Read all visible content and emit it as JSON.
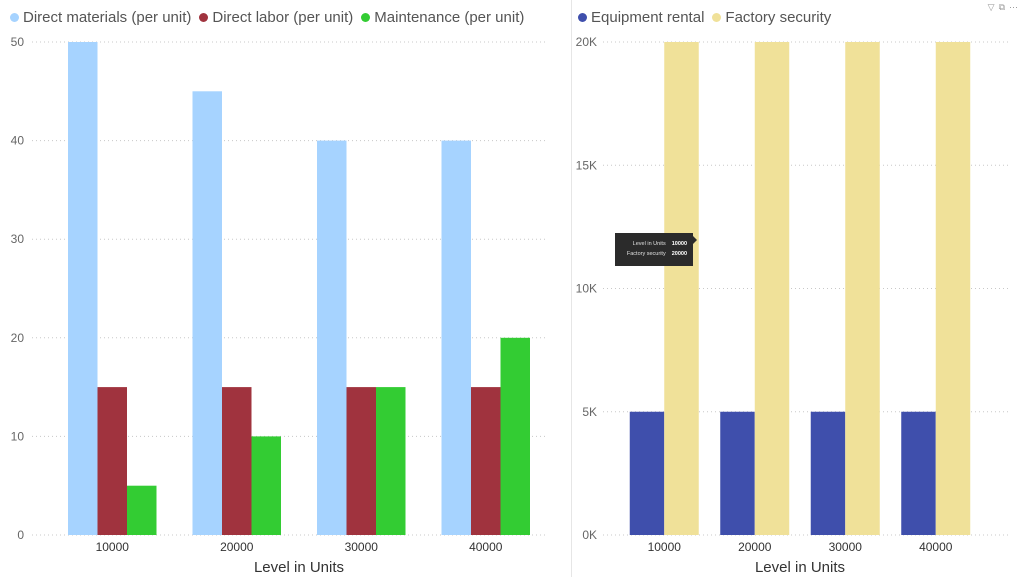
{
  "chart_data": [
    {
      "type": "bar",
      "title": "",
      "xlabel": "Level in Units",
      "ylabel": "",
      "categories": [
        "10000",
        "20000",
        "30000",
        "40000"
      ],
      "ylim": [
        0,
        50
      ],
      "yticks": [
        "0",
        "10",
        "20",
        "30",
        "40",
        "50"
      ],
      "ytick_values": [
        0,
        10,
        20,
        30,
        40,
        50
      ],
      "legend_position": "top-left",
      "grid": true,
      "series": [
        {
          "name": "Direct materials (per unit)",
          "color": "#a6d3ff",
          "values": [
            50,
            45,
            40,
            40
          ]
        },
        {
          "name": "Direct labor (per unit)",
          "color": "#a0333e",
          "values": [
            15,
            15,
            15,
            15
          ]
        },
        {
          "name": "Maintenance (per unit)",
          "color": "#33cc33",
          "values": [
            5,
            10,
            15,
            20
          ]
        }
      ]
    },
    {
      "type": "bar",
      "title": "",
      "xlabel": "Level in Units",
      "ylabel": "",
      "categories": [
        "10000",
        "20000",
        "30000",
        "40000"
      ],
      "ylim": [
        0,
        20000
      ],
      "yticks": [
        "0K",
        "5K",
        "10K",
        "15K",
        "20K"
      ],
      "ytick_values": [
        0,
        5000,
        10000,
        15000,
        20000
      ],
      "legend_position": "top-left",
      "grid": true,
      "series": [
        {
          "name": "Equipment rental",
          "color": "#3f4fac",
          "values": [
            5000,
            5000,
            5000,
            5000
          ]
        },
        {
          "name": "Factory security",
          "color": "#f0e199",
          "values": [
            20000,
            20000,
            20000,
            20000
          ]
        }
      ],
      "tooltip": {
        "rows": [
          {
            "label": "Level in Units",
            "value": "10000"
          },
          {
            "label": "Factory security",
            "value": "20000"
          }
        ]
      }
    }
  ],
  "icons": {
    "filter": "filter-icon",
    "focus": "focus-mode-icon",
    "more": "more-options-icon"
  }
}
